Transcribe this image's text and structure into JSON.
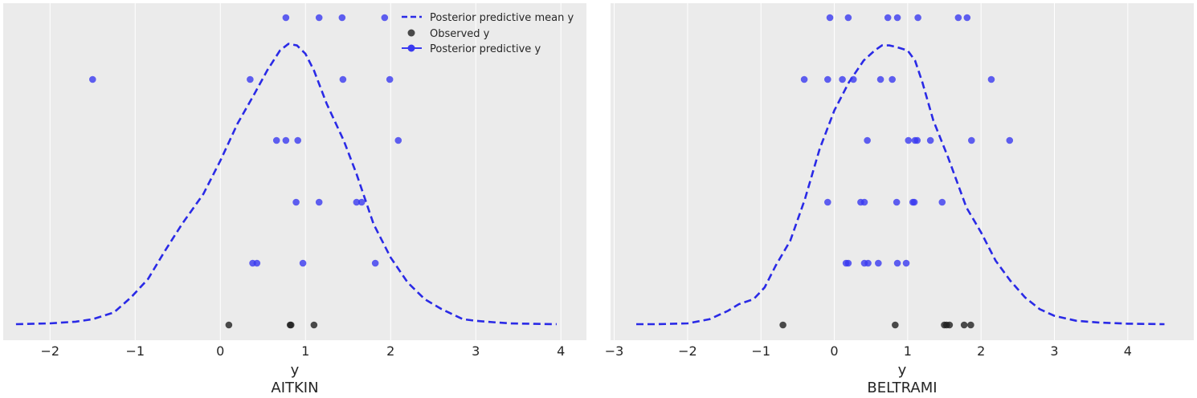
{
  "chart_data": [
    {
      "type": "scatter",
      "title": "",
      "xlabel": "y",
      "sublabel": "AITKIN",
      "xlim": [
        -2.55,
        4.3
      ],
      "xticks": [
        -2,
        -1,
        0,
        1,
        2,
        3,
        4
      ],
      "xtick_labels": [
        "−2",
        "−1",
        "0",
        "1",
        "2",
        "3",
        "4"
      ],
      "grid": true,
      "legend_position": "top-right",
      "legend": {
        "mean_label": "Posterior predictive mean y",
        "observed_label": "Observed y",
        "predictive_label": "Posterior predictive y"
      },
      "colors": {
        "predictive": "#3a3af0",
        "observed": "#202020",
        "mean": "#2a2ae6",
        "background": "#ebebeb",
        "grid": "#ffffff"
      },
      "mean_curve": {
        "x": [
          -2.4,
          -2.0,
          -1.7,
          -1.5,
          -1.25,
          -1.05,
          -0.85,
          -0.65,
          -0.45,
          -0.2,
          0.0,
          0.2,
          0.4,
          0.55,
          0.7,
          0.8,
          0.9,
          1.0,
          1.1,
          1.25,
          1.45,
          1.6,
          1.8,
          2.0,
          2.2,
          2.4,
          2.6,
          2.85,
          3.0,
          3.2,
          3.4,
          3.7,
          3.95
        ],
        "y": [
          0.0,
          0.005,
          0.015,
          0.03,
          0.07,
          0.16,
          0.27,
          0.44,
          0.6,
          0.78,
          0.98,
          1.2,
          1.38,
          1.52,
          1.64,
          1.68,
          1.67,
          1.62,
          1.52,
          1.32,
          1.1,
          0.9,
          0.6,
          0.4,
          0.25,
          0.15,
          0.09,
          0.03,
          0.02,
          0.012,
          0.005,
          0.002,
          0.0
        ]
      },
      "observed": [
        0.1,
        0.82,
        0.83,
        1.1
      ],
      "predictive": [
        [
          0.77,
          1.16,
          1.43,
          1.93
        ],
        [
          -1.5,
          0.35,
          1.44,
          1.99
        ],
        [
          0.66,
          0.77,
          0.91,
          2.09
        ],
        [
          0.89,
          1.16,
          1.6,
          1.66
        ],
        [
          0.38,
          0.43,
          0.97,
          1.82
        ]
      ]
    },
    {
      "type": "scatter",
      "title": "",
      "xlabel": "y",
      "sublabel": "BELTRAMI",
      "xlim": [
        -3.05,
        4.9
      ],
      "xticks": [
        -3,
        -2,
        -1,
        0,
        1,
        2,
        3,
        4
      ],
      "xtick_labels": [
        "−3",
        "−2",
        "−1",
        "0",
        "1",
        "2",
        "3",
        "4"
      ],
      "grid": true,
      "colors": {
        "predictive": "#3a3af0",
        "observed": "#202020",
        "mean": "#2a2ae6",
        "background": "#ebebeb",
        "grid": "#ffffff"
      },
      "mean_curve": {
        "x": [
          -2.7,
          -2.4,
          -2.0,
          -1.7,
          -1.45,
          -1.3,
          -1.1,
          -0.95,
          -0.8,
          -0.6,
          -0.4,
          -0.2,
          0.0,
          0.2,
          0.4,
          0.55,
          0.65,
          0.75,
          0.85,
          1.0,
          1.1,
          1.2,
          1.35,
          1.55,
          1.8,
          2.0,
          2.2,
          2.4,
          2.6,
          2.8,
          3.0,
          3.3,
          3.6,
          4.0,
          4.5
        ],
        "y": [
          0.0,
          0.0,
          0.005,
          0.03,
          0.08,
          0.12,
          0.15,
          0.22,
          0.35,
          0.5,
          0.75,
          1.05,
          1.28,
          1.45,
          1.58,
          1.64,
          1.67,
          1.67,
          1.66,
          1.64,
          1.58,
          1.45,
          1.22,
          1.0,
          0.7,
          0.55,
          0.38,
          0.26,
          0.16,
          0.09,
          0.05,
          0.02,
          0.01,
          0.003,
          0.0
        ]
      },
      "observed": [
        -0.7,
        0.83,
        1.5,
        1.53,
        1.57,
        1.77,
        1.86
      ],
      "predictive": [
        [
          -0.06,
          0.19,
          0.73,
          0.86,
          1.14,
          1.69,
          1.81
        ],
        [
          -0.41,
          -0.09,
          0.11,
          0.26,
          0.63,
          0.79,
          2.14
        ],
        [
          0.45,
          1.01,
          1.1,
          1.13,
          1.31,
          1.87,
          2.39
        ],
        [
          -0.09,
          0.36,
          0.41,
          0.85,
          1.07,
          1.09,
          1.47
        ],
        [
          0.16,
          0.19,
          0.41,
          0.46,
          0.6,
          0.86,
          0.98
        ]
      ]
    }
  ]
}
